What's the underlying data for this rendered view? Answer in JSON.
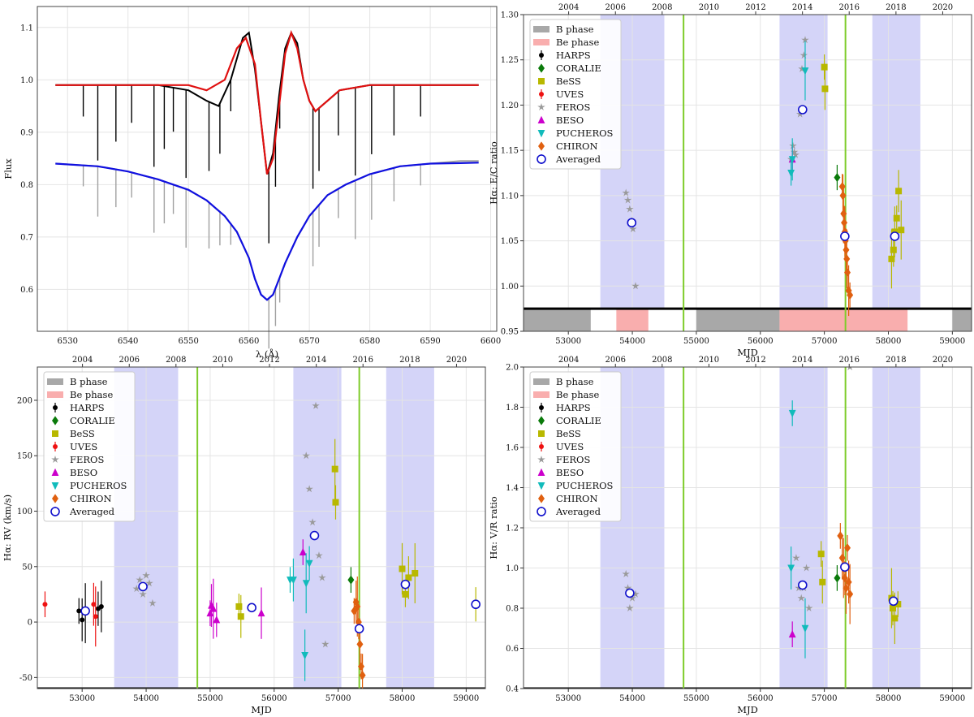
{
  "chart_data": [
    {
      "id": "spectrum",
      "type": "line",
      "xlabel": "λ (Å)",
      "ylabel": "Flux",
      "xlim": [
        6525,
        6601
      ],
      "ylim": [
        0.52,
        1.14
      ],
      "xticks": [
        6530,
        6540,
        6550,
        6560,
        6570,
        6580,
        6590,
        6600
      ],
      "yticks": [
        0.6,
        0.7,
        0.8,
        0.9,
        1.0,
        1.1
      ],
      "series": [
        {
          "name": "observed Be (black)",
          "color": "#000000",
          "x": [
            6528,
            6535,
            6540,
            6545,
            6550,
            6553,
            6555,
            6557,
            6559,
            6560,
            6561,
            6562,
            6563,
            6564,
            6565,
            6566,
            6567,
            6568,
            6569,
            6570,
            6571,
            6573,
            6575,
            6580,
            6585,
            6590,
            6595,
            6598
          ],
          "y": [
            0.99,
            0.99,
            0.99,
            0.99,
            0.98,
            0.96,
            0.95,
            1.0,
            1.08,
            1.09,
            1.02,
            0.92,
            0.82,
            0.86,
            0.97,
            1.06,
            1.09,
            1.07,
            1.0,
            0.96,
            0.94,
            0.96,
            0.98,
            0.99,
            0.99,
            0.99,
            0.99,
            0.99
          ]
        },
        {
          "name": "model Be (red)",
          "color": "#e01010",
          "x": [
            6528,
            6540,
            6550,
            6553,
            6556,
            6558,
            6559.5,
            6561,
            6562,
            6563,
            6564,
            6565,
            6566,
            6567,
            6568,
            6569,
            6570,
            6571,
            6572,
            6575,
            6580,
            6590,
            6598
          ],
          "y": [
            0.99,
            0.99,
            0.99,
            0.98,
            1.0,
            1.06,
            1.08,
            1.03,
            0.92,
            0.82,
            0.85,
            0.95,
            1.05,
            1.09,
            1.06,
            1.0,
            0.96,
            0.94,
            0.95,
            0.98,
            0.99,
            0.99,
            0.99
          ]
        },
        {
          "name": "observed B (grey)",
          "color": "#a0a0a0",
          "x": [
            6528,
            6535,
            6540,
            6545,
            6550,
            6553,
            6556,
            6558,
            6560,
            6561,
            6562,
            6563,
            6564,
            6565,
            6566,
            6568,
            6570,
            6573,
            6576,
            6580,
            6585,
            6590,
            6595,
            6598
          ],
          "y": [
            0.84,
            0.835,
            0.825,
            0.81,
            0.79,
            0.77,
            0.74,
            0.71,
            0.66,
            0.62,
            0.59,
            0.58,
            0.59,
            0.62,
            0.65,
            0.7,
            0.74,
            0.78,
            0.8,
            0.82,
            0.835,
            0.84,
            0.845,
            0.845
          ]
        },
        {
          "name": "model B (blue)",
          "color": "#1010e0",
          "x": [
            6528,
            6535,
            6540,
            6545,
            6550,
            6553,
            6556,
            6558,
            6560,
            6561,
            6562,
            6563,
            6564,
            6565,
            6566,
            6568,
            6570,
            6573,
            6576,
            6580,
            6585,
            6590,
            6595,
            6598
          ],
          "y": [
            0.84,
            0.835,
            0.825,
            0.81,
            0.79,
            0.77,
            0.74,
            0.71,
            0.66,
            0.62,
            0.59,
            0.58,
            0.59,
            0.62,
            0.65,
            0.7,
            0.74,
            0.78,
            0.8,
            0.82,
            0.835,
            0.84,
            0.841,
            0.842
          ]
        }
      ]
    },
    {
      "id": "ec_ratio",
      "type": "scatter",
      "xlabel": "MJD",
      "ylabel": "Hα: E/C ratio",
      "xlim": [
        52300,
        59300
      ],
      "ylim": [
        0.95,
        1.3
      ],
      "xticks": [
        53000,
        54000,
        55000,
        56000,
        57000,
        58000,
        59000
      ],
      "yticks": [
        0.95,
        1.0,
        1.05,
        1.1,
        1.15,
        1.2,
        1.25,
        1.3
      ],
      "top_ticks": [
        "2004",
        "2006",
        "2008",
        "2010",
        "2012",
        "2014",
        "2016",
        "2018",
        "2020"
      ],
      "phase_floor": 0.975,
      "series": [
        {
          "name": "FEROS",
          "marker": "star",
          "color": "#9a9a9a",
          "x": [
            53900,
            53930,
            53960,
            53990,
            54010,
            54050,
            56480,
            56510,
            56530,
            56550,
            56620,
            56650,
            56680,
            56700
          ],
          "y": [
            1.103,
            1.095,
            1.085,
            1.072,
            1.063,
            1.0,
            1.14,
            1.155,
            1.148,
            1.145,
            1.19,
            1.24,
            1.255,
            1.272
          ]
        },
        {
          "name": "BeSS",
          "marker": "square",
          "color": "#b8b800",
          "x": [
            57000,
            57010,
            58050,
            58080,
            58100,
            58130,
            58160,
            58200
          ],
          "y": [
            1.242,
            1.218,
            1.03,
            1.04,
            1.06,
            1.075,
            1.105,
            1.062
          ]
        },
        {
          "name": "CORALIE",
          "marker": "diamond",
          "color": "#0a7a0a",
          "x": [
            57200
          ],
          "y": [
            1.12
          ]
        },
        {
          "name": "BESO",
          "marker": "triangle",
          "color": "#cc00cc",
          "x": [
            56500
          ],
          "y": [
            1.14
          ]
        },
        {
          "name": "PUCHEROS",
          "marker": "tri-down",
          "color": "#11bbbb",
          "x": [
            56480,
            56500,
            56700
          ],
          "y": [
            1.125,
            1.14,
            1.238
          ]
        },
        {
          "name": "CHIRON",
          "marker": "diamond",
          "color": "#e06010",
          "x": [
            57280,
            57290,
            57300,
            57310,
            57320,
            57330,
            57340,
            57350,
            57360,
            57380,
            57400
          ],
          "y": [
            1.11,
            1.1,
            1.08,
            1.07,
            1.06,
            1.05,
            1.04,
            1.03,
            1.015,
            0.995,
            0.99
          ]
        },
        {
          "name": "Averaged",
          "marker": "circle",
          "color": "#1010cc",
          "x": [
            53990,
            56660,
            57320,
            58100
          ],
          "y": [
            1.07,
            1.195,
            1.055,
            1.055
          ]
        }
      ]
    },
    {
      "id": "rv",
      "type": "scatter",
      "xlabel": "MJD",
      "ylabel": "Hα: RV (km/s)",
      "xlim": [
        52300,
        59300
      ],
      "ylim": [
        -60,
        230
      ],
      "xticks": [
        53000,
        54000,
        55000,
        56000,
        57000,
        58000,
        59000
      ],
      "yticks": [
        -50,
        0,
        50,
        100,
        150,
        200
      ],
      "top_ticks": [
        "2004",
        "2006",
        "2008",
        "2010",
        "2012",
        "2014",
        "2016",
        "2018",
        "2020"
      ],
      "phase_floor": -60,
      "series": [
        {
          "name": "HARPS",
          "marker": "dot",
          "color": "#000000",
          "x": [
            52950,
            53000,
            53050,
            53250,
            53300
          ],
          "y": [
            10,
            2,
            8,
            12,
            14
          ]
        },
        {
          "name": "UVES",
          "marker": "dot",
          "color": "#ee1111",
          "x": [
            52420,
            53180,
            53210
          ],
          "y": [
            16,
            16,
            5
          ]
        },
        {
          "name": "FEROS",
          "marker": "star",
          "color": "#9a9a9a",
          "x": [
            53850,
            53900,
            53950,
            54000,
            54050,
            54100,
            56500,
            56550,
            56600,
            56650,
            56700,
            56750,
            56800
          ],
          "y": [
            30,
            38,
            25,
            42,
            35,
            17,
            150,
            120,
            90,
            195,
            60,
            40,
            -20
          ]
        },
        {
          "name": "BESO",
          "marker": "triangle",
          "color": "#cc00cc",
          "x": [
            55000,
            55020,
            55050,
            55100,
            55800,
            56450
          ],
          "y": [
            8,
            15,
            12,
            2,
            8,
            63
          ]
        },
        {
          "name": "PUCHEROS",
          "marker": "tri-down",
          "color": "#11bbbb",
          "x": [
            56250,
            56300,
            56500,
            56550,
            56480
          ],
          "y": [
            38,
            38,
            35,
            53,
            -30
          ]
        },
        {
          "name": "BeSS",
          "marker": "square",
          "color": "#b8b800",
          "x": [
            55450,
            55480,
            56950,
            56960,
            58000,
            58050,
            58100,
            58200,
            59150
          ],
          "y": [
            14,
            5,
            138,
            108,
            48,
            25,
            40,
            44,
            16
          ]
        },
        {
          "name": "CORALIE",
          "marker": "diamond",
          "color": "#0a7a0a",
          "x": [
            57200
          ],
          "y": [
            38
          ]
        },
        {
          "name": "CHIRON",
          "marker": "diamond",
          "color": "#e06010",
          "x": [
            57250,
            57280,
            57300,
            57320,
            57340,
            57360,
            57380
          ],
          "y": [
            10,
            18,
            14,
            0,
            -20,
            -40,
            -48
          ]
        },
        {
          "name": "Averaged",
          "marker": "circle",
          "color": "#1010cc",
          "x": [
            53050,
            53950,
            55650,
            56630,
            57330,
            58050,
            59150
          ],
          "y": [
            10,
            32,
            13,
            78,
            -6,
            34,
            16
          ]
        }
      ]
    },
    {
      "id": "vr_ratio",
      "type": "scatter",
      "xlabel": "MJD",
      "ylabel": "Hα: V/R ratio",
      "xlim": [
        52300,
        59300
      ],
      "ylim": [
        0.4,
        2.0
      ],
      "xticks": [
        53000,
        54000,
        55000,
        56000,
        57000,
        58000,
        59000
      ],
      "yticks": [
        0.4,
        0.6,
        0.8,
        1.0,
        1.2,
        1.4,
        1.6,
        1.8,
        2.0
      ],
      "top_ticks": [
        "2004",
        "2006",
        "2008",
        "2010",
        "2012",
        "2014",
        "2016",
        "2018",
        "2020"
      ],
      "phase_floor": 0.4,
      "series": [
        {
          "name": "FEROS",
          "marker": "star",
          "color": "#9a9a9a",
          "x": [
            53900,
            53930,
            53960,
            54000,
            54050,
            56560,
            56600,
            56640,
            56680,
            56720,
            56760,
            57400
          ],
          "y": [
            0.97,
            0.9,
            0.8,
            0.85,
            0.87,
            1.05,
            0.9,
            0.85,
            0.9,
            1.0,
            0.8,
            2.0
          ]
        },
        {
          "name": "BESO",
          "marker": "triangle",
          "color": "#cc00cc",
          "x": [
            56500
          ],
          "y": [
            0.67
          ]
        },
        {
          "name": "PUCHEROS",
          "marker": "tri-down",
          "color": "#11bbbb",
          "x": [
            56500,
            56480,
            56700
          ],
          "y": [
            1.77,
            1.0,
            0.7
          ]
        },
        {
          "name": "BeSS",
          "marker": "square",
          "color": "#b8b800",
          "x": [
            56950,
            56970,
            58050,
            58070,
            58100,
            58150
          ],
          "y": [
            1.07,
            0.93,
            0.85,
            0.8,
            0.75,
            0.82
          ]
        },
        {
          "name": "CORALIE",
          "marker": "diamond",
          "color": "#0a7a0a",
          "x": [
            57200
          ],
          "y": [
            0.95
          ]
        },
        {
          "name": "CHIRON",
          "marker": "diamond",
          "color": "#e06010",
          "x": [
            57250,
            57280,
            57300,
            57320,
            57340,
            57360,
            57380,
            57400
          ],
          "y": [
            1.16,
            1.05,
            1.0,
            0.95,
            0.9,
            1.1,
            0.93,
            0.87
          ]
        },
        {
          "name": "Averaged",
          "marker": "circle",
          "color": "#1010cc",
          "x": [
            53960,
            56660,
            57320,
            58080
          ],
          "y": [
            0.875,
            0.915,
            1.005,
            0.835
          ]
        }
      ]
    }
  ],
  "legend": {
    "items": [
      {
        "label": "B phase",
        "kind": "bar",
        "color": "#a8a8a8"
      },
      {
        "label": "Be phase",
        "kind": "bar",
        "color": "#f9aeae"
      },
      {
        "label": "HARPS",
        "kind": "dot",
        "color": "#000000"
      },
      {
        "label": "CORALIE",
        "kind": "diamond",
        "color": "#0a7a0a"
      },
      {
        "label": "BeSS",
        "kind": "square",
        "color": "#b8b800"
      },
      {
        "label": "UVES",
        "kind": "dot",
        "color": "#ee1111"
      },
      {
        "label": "FEROS",
        "kind": "star",
        "color": "#9a9a9a"
      },
      {
        "label": "BESO",
        "kind": "triangle",
        "color": "#cc00cc"
      },
      {
        "label": "PUCHEROS",
        "kind": "tri-down",
        "color": "#11bbbb"
      },
      {
        "label": "CHIRON",
        "kind": "diamond",
        "color": "#e06010"
      },
      {
        "label": "Averaged",
        "kind": "circle",
        "color": "#1010cc"
      }
    ]
  },
  "shared": {
    "blue_bands_mjd": [
      [
        53500,
        54500
      ],
      [
        56300,
        57050
      ],
      [
        57750,
        58500
      ]
    ],
    "green_lines_mjd": [
      54800,
      57330
    ],
    "b_phase_mjd": [
      [
        52300,
        53350
      ],
      [
        55000,
        56300
      ],
      [
        59000,
        59300
      ]
    ],
    "be_phase_mjd": [
      [
        53750,
        54250
      ],
      [
        56300,
        58300
      ]
    ],
    "colors": {
      "blue_band": "#d4d4f8",
      "green_line": "#7ecc2a",
      "b_phase": "#a8a8a8",
      "be_phase": "#f9aeae"
    }
  }
}
